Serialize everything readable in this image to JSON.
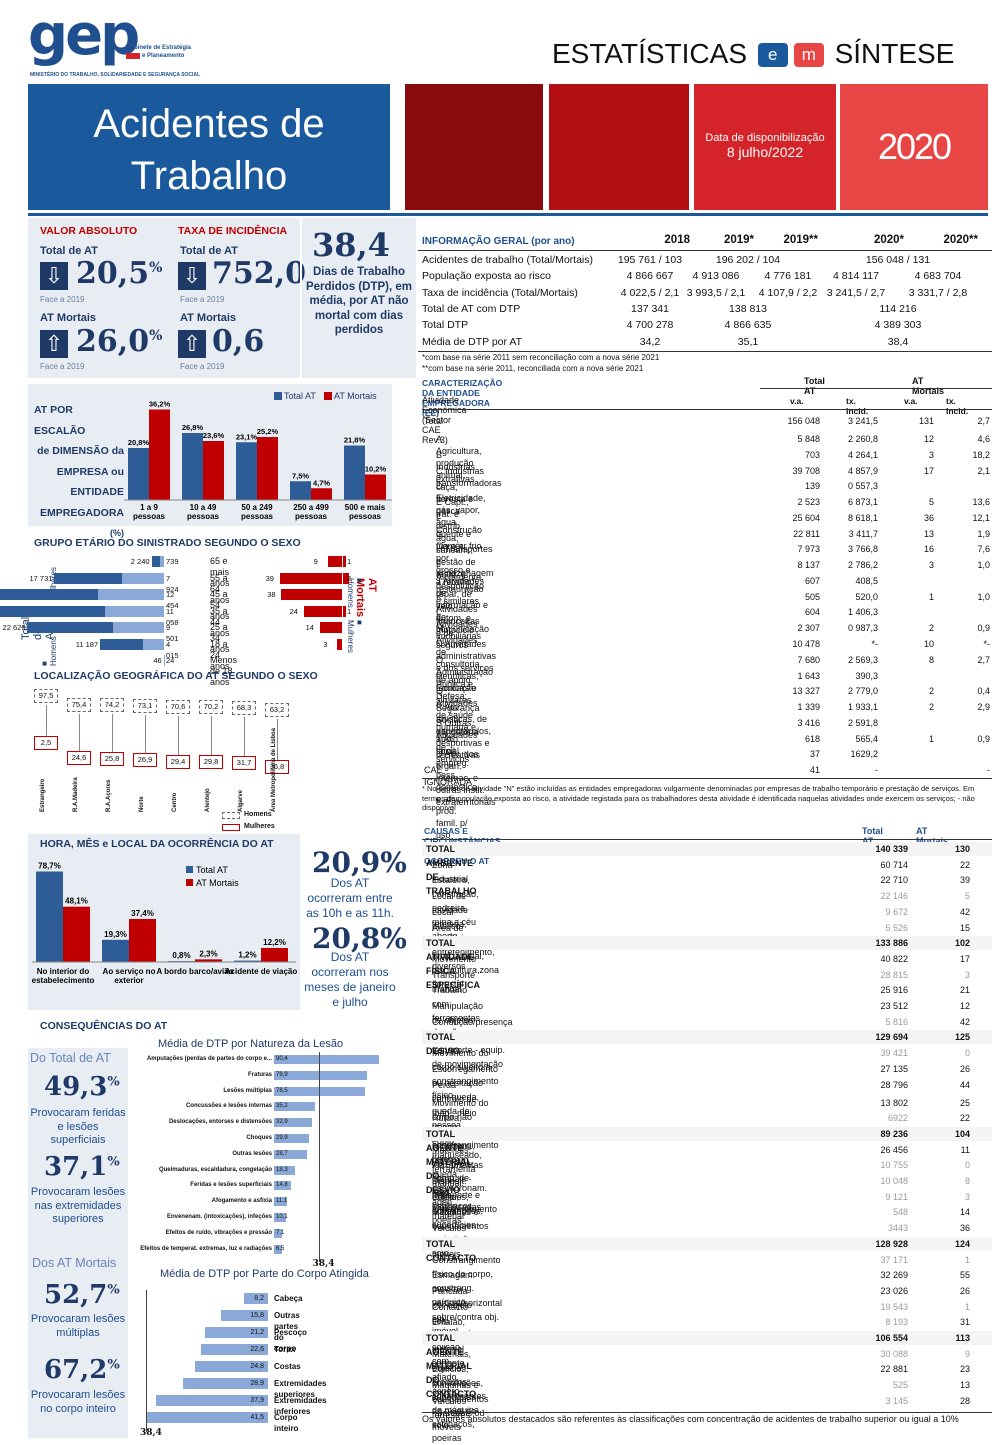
{
  "header": {
    "logo": "gep",
    "logo_sub1": "Gabinete de Estratégia",
    "logo_sub2": "e Planeamento",
    "ministry": "MINISTÉRIO DO TRABALHO, SOLIDARIEDADE E SEGURANÇA SOCIAL",
    "title_a": "ESTATÍSTICAS",
    "badge_e": "e",
    "badge_m": "m",
    "title_b": "SÍNTESE",
    "main_title_1": "Acidentes de",
    "main_title_2": "Trabalho",
    "date_label": "Data de disponibilização",
    "date_value": "8 julho/2022",
    "year": "2020"
  },
  "kpi": {
    "valor_absoluto": "VALOR ABSOLUTO",
    "taxa_incidencia": "TAXA DE INCIDÊNCIA",
    "total_at": "Total de AT",
    "at_mortais": "AT Mortais",
    "face": "Face a 2019",
    "v1": "20,5",
    "v2": "752,0",
    "v3": "26,0",
    "v4": "0,6",
    "pct": "%",
    "dtp": "38,4",
    "dtp_text": "Dias de Trabalho Perdidos (DTP), em média, por AT não mortal com dias perdidos"
  },
  "escalao": {
    "title1": "AT POR ESCALÃO",
    "title2": "de DIMENSÃO da",
    "title3": "EMPRESA ou",
    "title4": "ENTIDADE",
    "title5": "EMPREGADORA",
    "unit": "(%)",
    "legend_total": "Total AT",
    "legend_mortais": "AT Mortais",
    "categories": [
      "1 a 9 pessoas",
      "10 a 49 pessoas",
      "50 a 249 pessoas",
      "250 a 499 pessoas",
      "500 e mais pessoas"
    ],
    "total": [
      "20,8%",
      "26,8%",
      "23,1%",
      "7,5%",
      "21,8%"
    ],
    "mortais": [
      "36,2%",
      "23,6%",
      "25,2%",
      "4,7%",
      "10,2%"
    ]
  },
  "idade": {
    "title": "GRUPO ETÁRIO DO SINISTRADO SEGUNDO O SEXO",
    "left_label": "Total de AT",
    "right_label": "AT Mortais",
    "homens": "Homens",
    "mulheres": "Mulheres",
    "groups": [
      "65 e mais anos",
      "55 a 64 anos",
      "45 a 54 anos",
      "35 a 44 anos",
      "25 a 34 anos",
      "18 a 24 anos",
      "Menos de 18 anos"
    ],
    "h": [
      "2 240",
      "17 731",
      "27 549",
      "27 806",
      "22 620",
      "11 187",
      "46"
    ],
    "m": [
      "739",
      "7 924",
      "12 454",
      "11 058",
      "9 501",
      "4 015",
      "24"
    ],
    "mort_h": [
      "9",
      "39",
      "38",
      "24",
      "14",
      "3",
      ""
    ],
    "mort_m": [
      "1",
      "2",
      "",
      "1",
      "",
      "",
      ""
    ]
  },
  "regiao": {
    "title": "LOCALIZAÇÃO GEOGRÁFICA DO AT SEGUNDO O SEXO",
    "regions": [
      "Estrangeiro",
      "R.A.Madeira",
      "R.A.Açores",
      "Norte",
      "Centro",
      "Alentejo",
      "Algarve",
      "Área Metropolitana de Lisboa"
    ],
    "homens": [
      "97,5",
      "75,4",
      "74,2",
      "73,1",
      "70,6",
      "70,2",
      "68,3",
      "63,2"
    ],
    "mulheres": [
      "2,5",
      "24,6",
      "25,8",
      "26,9",
      "29,4",
      "29,8",
      "31,7",
      "36,8"
    ],
    "leg_h": "Homens",
    "leg_m": "Mulheres"
  },
  "hora": {
    "title": "HORA, MÊS e LOCAL DA OCORRÊNCIA DO AT",
    "legend_total": "Total AT",
    "legend_mortais": "AT Mortais",
    "categories": [
      "No interior do estabelecimento",
      "Ao serviço no exterior",
      "A bordo barco/avião",
      "Acidente de viação"
    ],
    "total": [
      "78,7%",
      "19,3%",
      "0,8%",
      "1,2%"
    ],
    "mortais": [
      "48,1%",
      "37,4%",
      "2,3%",
      "12,2%"
    ],
    "k1": "20,9%",
    "k1t": "Dos AT ocorreram entre as 10h e as 11h.",
    "k2": "20,8%",
    "k2t": "Dos AT ocorreram nos meses de janeiro e julho"
  },
  "consequencias": {
    "title": "CONSEQUÊNCIAS DO AT",
    "do_total": "Do Total de AT",
    "p1": "49,3",
    "p1t": "Provocaram feridas e lesões superficiais",
    "p2": "37,1",
    "p2t": "Provocaram lesões nas extremidades superiores",
    "dos_mortais": "Dos AT Mortais",
    "p3": "52,7",
    "p3t": "Provocaram lesões múltiplas",
    "p4": "67,2",
    "p4t": "Provocaram lesões no corpo inteiro",
    "pct": "%",
    "nat_title": "Média de DTP por Natureza da Lesão",
    "nat": [
      [
        "Amputações (perdas de partes do corpo e...",
        "90,4"
      ],
      [
        "Fraturas",
        "79,9"
      ],
      [
        "Lesões múltiplas",
        "78,5"
      ],
      [
        "Concussões e lesões internas",
        "35,2"
      ],
      [
        "Deslocações, entorses e distensões",
        "32,9"
      ],
      [
        "Choques",
        "29,9"
      ],
      [
        "Outras lesões",
        "28,7"
      ],
      [
        "Queimaduras, escaldadura, congelação",
        "18,3"
      ],
      [
        "Feridas e lesões superficiais",
        "14,8"
      ],
      [
        "Afogamento e asfixia",
        "11,1"
      ],
      [
        "Envenenam. (intoxicações), infeções",
        "10,1"
      ],
      [
        "Efeitos de ruído, vibrações e pressão",
        "7,1"
      ],
      [
        "Efeitos de temperat. extremas, luz e radiações",
        "6,5"
      ]
    ],
    "nat_ref": "38,4",
    "corpo_title": "Média de DTP por Parte do Corpo Atingida",
    "corpo": [
      [
        "Cabeça",
        "8,2"
      ],
      [
        "Outras partes do corpo",
        "15,8"
      ],
      [
        "Pescoço",
        "21,2"
      ],
      [
        "Torax",
        "22,6"
      ],
      [
        "Costas",
        "24,8"
      ],
      [
        "Extremidades superiores",
        "28,9"
      ],
      [
        "Extremidades inferiores",
        "37,9"
      ],
      [
        "Corpo inteiro",
        "41,5"
      ]
    ],
    "corpo_ref": "38,4"
  },
  "geral": {
    "title": "INFORMAÇÃO GERAL (por ano)",
    "years": [
      "2018",
      "2019*",
      "2019**",
      "2020*",
      "2020**"
    ],
    "rows": [
      [
        "Acidentes de trabalho (Total/Mortais)",
        "195 761 / 103",
        "196 202 / 104",
        "",
        "156 048 / 131",
        ""
      ],
      [
        "População exposta ao risco",
        "4 866 667",
        "4 913 086",
        "4 776 181",
        "4 814 117",
        "4 683 704"
      ],
      [
        "Taxa de incidência (Total/Mortais)",
        "4 022,5 / 2,1",
        "3 993,5 / 2,1",
        "4 107,9 / 2,2",
        "3 241,5 / 2,7",
        "3 331,7 / 2,8"
      ],
      [
        "Total de AT com DTP",
        "137 341",
        "138 813",
        "",
        "114 216",
        ""
      ],
      [
        "Total DTP",
        "4 700 278",
        "4 866 635",
        "",
        "4 389 303",
        ""
      ],
      [
        "Média de DTP por AT",
        "34,2",
        "35,1",
        "",
        "38,4",
        ""
      ]
    ],
    "note1": "*com base na série 2011 sem reconciliação com a nova série 2021",
    "note2": "**com base na série 2011, reconciliada com a nova série 2021"
  },
  "cae": {
    "title": "CARACTERIZAÇÃO DA ENTIDADE EMPREGADORA (EE)",
    "sub": "Atividade Económica (Sector CAE Rev.3)",
    "h_total": "Total AT",
    "h_mort": "AT Mortais",
    "va": "v.a.",
    "tx": "tx. Incid.",
    "rows": [
      [
        "Total",
        "156 048",
        "3 241,5",
        "131",
        "2,7"
      ],
      [
        "A  Agricultura, produção animal, caça, floresta e pesca",
        "5 848",
        "2 260,8",
        "12",
        "4,6"
      ],
      [
        "B  Indústrias extrativas",
        "703",
        "4 264,1",
        "3",
        "18,2"
      ],
      [
        "C  Indústrias transformadoras",
        "39 708",
        "4 857,9",
        "17",
        "2,1"
      ],
      [
        "D  Eletricidade, gás, vapor, água quente e fria e ar frio",
        "139",
        "0 557,3",
        "",
        ""
      ],
      [
        "E  Capt., trat. e distrib. água; saneam., gestão de resid. e despoluição",
        "2 523",
        "6 873,1",
        "5",
        "13,6"
      ],
      [
        "F  Construção",
        "25 604",
        "8 618,1",
        "36",
        "12,1"
      ],
      [
        "G  Comér. por grosso e a retalho; repar. de veic. autom. e motociclo",
        "22 811",
        "3 411,7",
        "13",
        "1,9"
      ],
      [
        "H  Transportes e armazenagem",
        "7 973",
        "3 766,8",
        "16",
        "7,6"
      ],
      [
        "I  Alojamento, restauração e similares",
        "8 137",
        "2 786,2",
        "3",
        "1,0"
      ],
      [
        "J  Atividades de informação e de comunicação",
        "607",
        "408,5",
        "",
        ""
      ],
      [
        "K  Atividades financeiras e de seguros",
        "505",
        "520,0",
        "1",
        "1,0"
      ],
      [
        "L  Atividades imobiliárias",
        "604",
        "1 406,3",
        "",
        ""
      ],
      [
        "M  Atividades de consultoria, científicas, técnicas e similares",
        "2 307",
        "0 987,3",
        "2",
        "0,9"
      ],
      [
        "N  Atividades administrativas e dos serviços de apoio",
        "10 478",
        "*-",
        "10",
        "*-"
      ],
      [
        "O  Administração Pública e Defesa; Segurança Social obrigatória",
        "7 680",
        "2 569,3",
        "8",
        "2,7"
      ],
      [
        "P  Educação",
        "1 643",
        "390,3",
        "",
        ""
      ],
      [
        "Q  Atividades de saúde humana e apoio social",
        "13 327",
        "2 779,0",
        "2",
        "0,4"
      ],
      [
        "R  Ativ. artísticas, de espectáculos, desportivas e recreativas",
        "1 339",
        "1 933,1",
        "2",
        "2,9"
      ],
      [
        "S  Outras Atividades de serviços",
        "3 416",
        "2 591,8",
        "",
        ""
      ],
      [
        "T  At. famil. empreg. pess. doméstico e ativ. prod. famil. p/ uso próprio",
        "618",
        "565,4",
        "1",
        "0,9"
      ],
      [
        "U  Ativ. dos organ. internac. e outras instit. extraterritoriais",
        "37",
        "1629,2",
        "",
        ""
      ],
      [
        "CAE IGNORADA",
        "41",
        "-",
        "",
        "-"
      ]
    ],
    "note": "* No sector de atividade \"N\" estão incluídas as entidades empregadoras vulgarmente denominadas por empresas de trabalho temporário e prestação de serviços. Em termos de população exposta ao risco, a atividade registada para os trabalhadores desta atividade é identificada naquelas atividades onde exercem os serviços; - não disponível"
  },
  "causas": {
    "title": "CAUSAS E CIRCUNSTÂNCIAS EM QUE OCORREU O AT",
    "h_total": "Total AT",
    "h_mort": "AT Mortais",
    "rows": [
      [
        "TOTAL AMBIENTE DE TRABALHO",
        "140 339",
        "130",
        "h"
      ],
      [
        "Zona industrial",
        "60 714",
        "22",
        ""
      ],
      [
        "Estaleiro, construção, pedreira, mina a céu aberto",
        "22 710",
        "39",
        ""
      ],
      [
        "Local de atividade terciária, escritório, entretenimento, diversos",
        "22 146",
        "5",
        "g"
      ],
      [
        "Local público",
        "9 672",
        "42",
        "g"
      ],
      [
        "Área de agricultura, prod. animal, piscicultura,zona florestal",
        "5 526",
        "15",
        "g"
      ],
      [
        "TOTAL ATIVIDADE FÍSICA ESPECÍFICA",
        "133 886",
        "102",
        "h"
      ],
      [
        "Movimento",
        "40 822",
        "17",
        ""
      ],
      [
        "Transporte manual",
        "28 815",
        "3",
        "g"
      ],
      [
        "Trabalho com ferramentas de mão",
        "25 916",
        "21",
        ""
      ],
      [
        "Manipulação de objetos",
        "23 512",
        "12",
        ""
      ],
      [
        "Condução/presença a bordo meio transporte - equip. de movimentação",
        "5 816",
        "42",
        "g"
      ],
      [
        "TOTAL DESVIO",
        "129 694",
        "125",
        "h"
      ],
      [
        "Movimento do corpo sujeito a constrangimento físico",
        "39 421",
        "0",
        "g"
      ],
      [
        "Escorregamento ou hesitação com queda, queda de pessoa",
        "27 135",
        "26",
        ""
      ],
      [
        "Perda controlo de máq., meio transp. - equip. manuseado, ferramenta manual, objeto, animal",
        "28 796",
        "44",
        ""
      ],
      [
        "Movimento do corpo não sujeito a constrangimento físico",
        "13 802",
        "25",
        ""
      ],
      [
        "Rutura, arrombam., rebentam., resvalam., queda, desmoronam. agen. material",
        "6922",
        "22",
        "g"
      ],
      [
        "TOTAL AGENTE MATERIAL DO DESVIO",
        "89 236",
        "104",
        "h"
      ],
      [
        "Materiais, obj., prod., comp. de máq. - estilhaços, poeiras",
        "26 456",
        "11",
        ""
      ],
      [
        "Ferramentas Manuais - Não Motorizadas",
        "10 755",
        "0",
        "g"
      ],
      [
        "Disposit. transporte e armazenamento",
        "10 048",
        "8",
        "g"
      ],
      [
        "Edifícios, construções, superfícies - a cima do solo",
        "9 121",
        "3",
        "g"
      ],
      [
        "Máquinas e equipamentos - portáteis ou móveis",
        "548",
        "14",
        "g"
      ],
      [
        "Veículos terrestres",
        "3443",
        "36",
        "g"
      ],
      [
        "TOTAL CONTACTO",
        "128 928",
        "124",
        "h"
      ],
      [
        "Constrangimento físico do corpo, constrang. psíquico",
        "37 171",
        "1",
        "g"
      ],
      [
        "Esmagam. movim. vertical/horizontal sobre/contra obj. imóvel",
        "32 269",
        "55",
        ""
      ],
      [
        "Pancada por objeto em movimento, colisão com",
        "23 026",
        "26",
        ""
      ],
      [
        "Contacto com agente material cortante, afiado, áspero",
        "19 543",
        "1",
        "g"
      ],
      [
        "Entalão, esmagamento, etc.",
        "8 193",
        "31",
        "g"
      ],
      [
        "TOTAL AGENTE MATERIAL DO CONTACTO",
        "106 554",
        "113",
        "h"
      ],
      [
        "Materiais, objetos, produtos, componentes de máquina - estilhaços, poeiras",
        "30 088",
        "9",
        "g"
      ],
      [
        "Edifícios, construções, superfícies - ao nível do solo",
        "22 881",
        "23",
        ""
      ],
      [
        "Máquinas e equipamentos - portáteis ou móveis",
        "525",
        "13",
        "g"
      ],
      [
        "Veículos terrestres",
        "3 145",
        "28",
        "g"
      ]
    ],
    "note": "Os valores absolutos destacados são referentes às classificações com concentração de acidentes de trabalho superior ou igual a 10%"
  },
  "colors": {
    "blue": "#1a5a9c",
    "navy": "#1f3a66",
    "red": "#c00000",
    "bar_blue": "#2e5c96",
    "bar_red": "#c00000"
  }
}
